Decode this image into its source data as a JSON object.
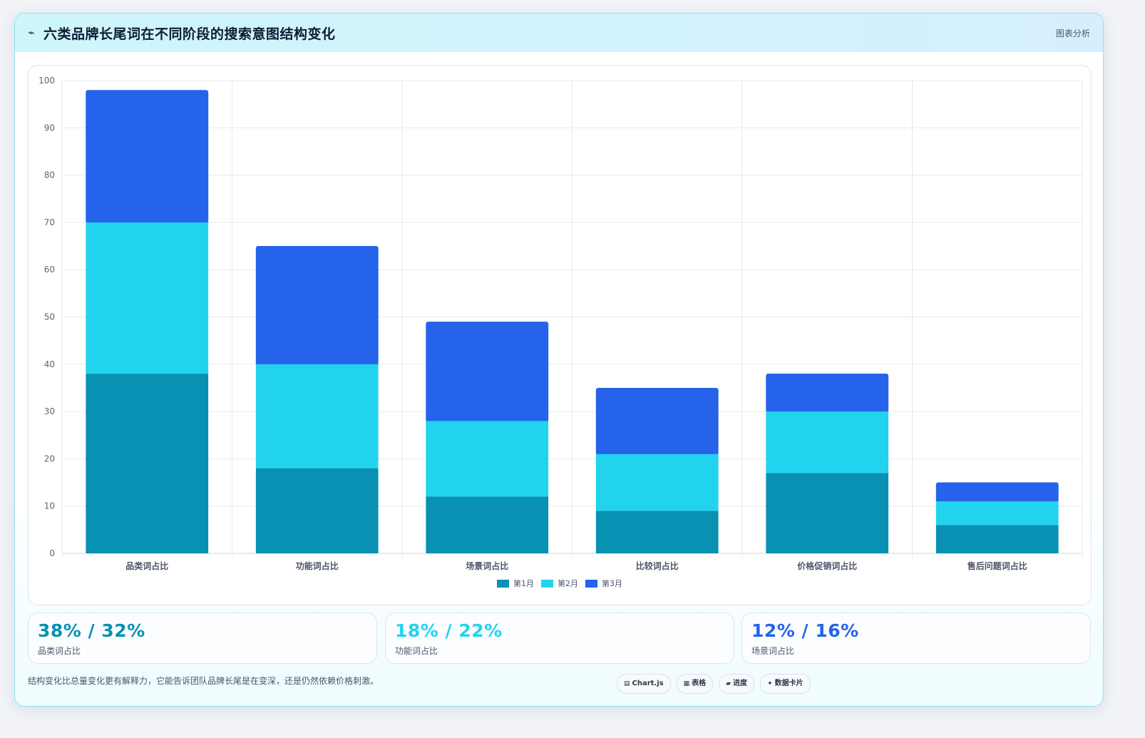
{
  "header": {
    "icon": "chart-trend-icon",
    "icon_glyph": "⌁",
    "title": "六类品牌长尾词在不同阶段的搜索意图结构变化",
    "tag": "图表分析"
  },
  "colors": {
    "series1": "#0891b2",
    "series2": "#22d3ee",
    "series3": "#2563eb"
  },
  "chart_data": {
    "type": "bar",
    "stacked": true,
    "categories": [
      "品类词占比",
      "功能词占比",
      "场景词占比",
      "比较词占比",
      "价格促销词占比",
      "售后问题词占比"
    ],
    "series": [
      {
        "name": "第1月",
        "values": [
          38,
          18,
          12,
          9,
          17,
          6
        ]
      },
      {
        "name": "第2月",
        "values": [
          32,
          22,
          16,
          12,
          13,
          5
        ]
      },
      {
        "name": "第3月",
        "values": [
          28,
          25,
          21,
          14,
          8,
          4
        ]
      }
    ],
    "ylim": [
      0,
      100
    ],
    "yticks": [
      0,
      10,
      20,
      30,
      40,
      50,
      60,
      70,
      80,
      90,
      100
    ],
    "grid": true,
    "legend": "bottom-center"
  },
  "stats": [
    {
      "value": "38% / 32%",
      "label": "品类词占比"
    },
    {
      "value": "18% / 22%",
      "label": "功能词占比"
    },
    {
      "value": "12% / 16%",
      "label": "场景词占比"
    }
  ],
  "footer": {
    "note": "结构变化比总量变化更有解释力，它能告诉团队品牌长尾是在变深，还是仍然依赖价格刺激。"
  },
  "pills": [
    {
      "icon": "chart-icon",
      "glyph": "▤",
      "label": "Chart.js"
    },
    {
      "icon": "table-icon",
      "glyph": "▦",
      "label": "表格"
    },
    {
      "icon": "progress-icon",
      "glyph": "▰",
      "label": "进度"
    },
    {
      "icon": "sparkle-icon",
      "glyph": "✦",
      "label": "数据卡片"
    }
  ]
}
